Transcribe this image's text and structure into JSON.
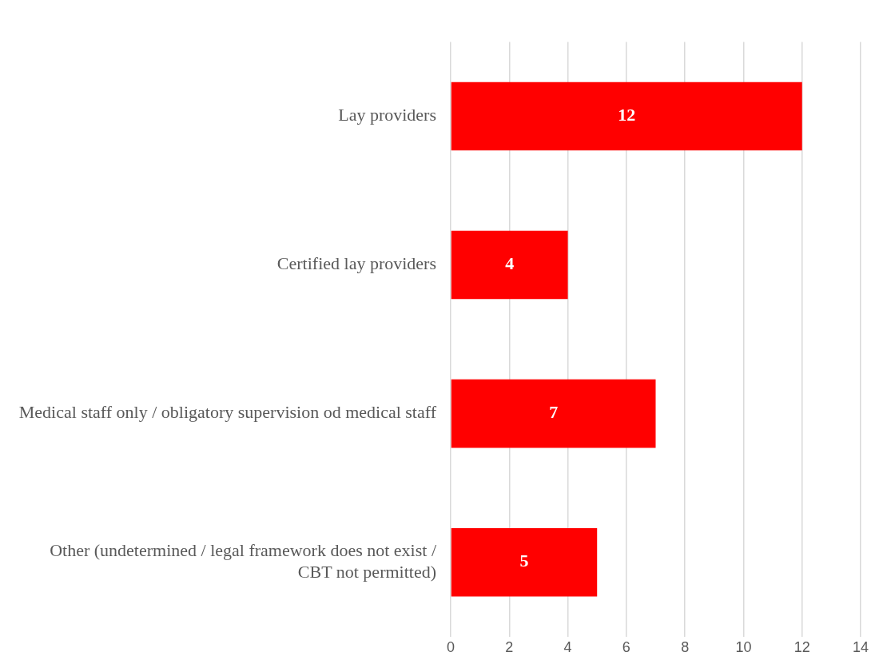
{
  "chart_data": {
    "type": "bar",
    "orientation": "horizontal",
    "categories": [
      "Lay providers",
      "Certified lay providers",
      "Medical staff only / obligatory supervision od medical staff",
      "Other (undetermined / legal framework does not exist / CBT not permitted)"
    ],
    "values": [
      12,
      4,
      7,
      5
    ],
    "color": "#ff0000",
    "xlim": [
      0,
      14
    ],
    "xticks": [
      0,
      2,
      4,
      6,
      8,
      10,
      12,
      14
    ],
    "grid": "x",
    "legend": false,
    "data_labels": true
  }
}
